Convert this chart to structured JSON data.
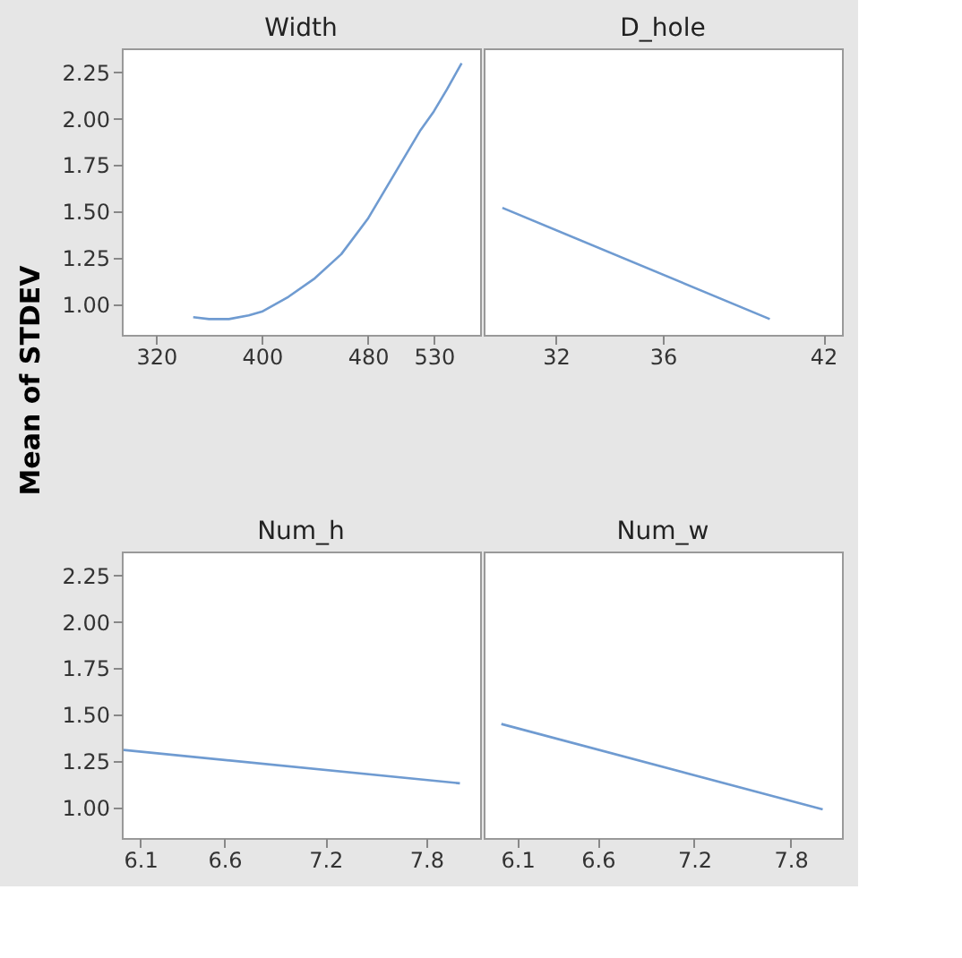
{
  "chart_data": [
    {
      "type": "line",
      "title": "Width",
      "ylabel": "Mean of STDEV",
      "x": [
        348,
        360,
        375,
        390,
        400,
        420,
        440,
        460,
        480,
        500,
        520,
        530,
        540,
        551
      ],
      "series": [
        {
          "color": "#6f9bd1",
          "values": [
            0.93,
            0.92,
            0.92,
            0.94,
            0.96,
            1.04,
            1.14,
            1.27,
            1.46,
            1.7,
            1.94,
            2.04,
            2.16,
            2.3
          ]
        }
      ],
      "xlim": [
        294,
        565
      ],
      "xticks": [
        320,
        400,
        480,
        530
      ],
      "ylim": [
        0.835,
        2.38
      ],
      "yticks": [
        {
          "value": 1,
          "label": "1.00"
        },
        {
          "value": 1.25,
          "label": "1.25"
        },
        {
          "value": 1.5,
          "label": "1.50"
        },
        {
          "value": 1.75,
          "label": "1.75"
        },
        {
          "value": 2,
          "label": "2.00"
        },
        {
          "value": 2.25,
          "label": "2.25"
        }
      ],
      "grid": false,
      "legend": false
    },
    {
      "type": "line",
      "title": "D_hole",
      "x": [
        30,
        40
      ],
      "series": [
        {
          "color": "#6f9bd1",
          "values": [
            1.52,
            0.92
          ]
        }
      ],
      "xlim": [
        29.3,
        42.7
      ],
      "xticks": [
        32,
        36,
        42
      ],
      "ylim": [
        0.835,
        2.38
      ],
      "tick_labels": "x",
      "grid": false,
      "legend": false
    },
    {
      "type": "line",
      "title": "Num_h",
      "x": [
        6.0,
        8.0
      ],
      "series": [
        {
          "color": "#6f9bd1",
          "values": [
            1.31,
            1.13
          ]
        }
      ],
      "xlim": [
        5.99,
        8.12
      ],
      "xticks": [
        6.1,
        6.6,
        7.2,
        7.8
      ],
      "ylim": [
        0.835,
        2.38
      ],
      "yticks": [
        {
          "value": 1,
          "label": "1.00"
        },
        {
          "value": 1.25,
          "label": "1.25"
        },
        {
          "value": 1.5,
          "label": "1.50"
        },
        {
          "value": 1.75,
          "label": "1.75"
        },
        {
          "value": 2,
          "label": "2.00"
        },
        {
          "value": 2.25,
          "label": "2.25"
        }
      ],
      "grid": false,
      "legend": false
    },
    {
      "type": "line",
      "title": "Num_w",
      "x": [
        6.0,
        8.0
      ],
      "series": [
        {
          "color": "#6f9bd1",
          "values": [
            1.45,
            0.99
          ]
        }
      ],
      "xlim": [
        5.89,
        8.12
      ],
      "xticks": [
        6.1,
        6.6,
        7.2,
        7.8
      ],
      "ylim": [
        0.835,
        2.38
      ],
      "tick_labels": "x",
      "grid": false,
      "legend": false
    }
  ]
}
